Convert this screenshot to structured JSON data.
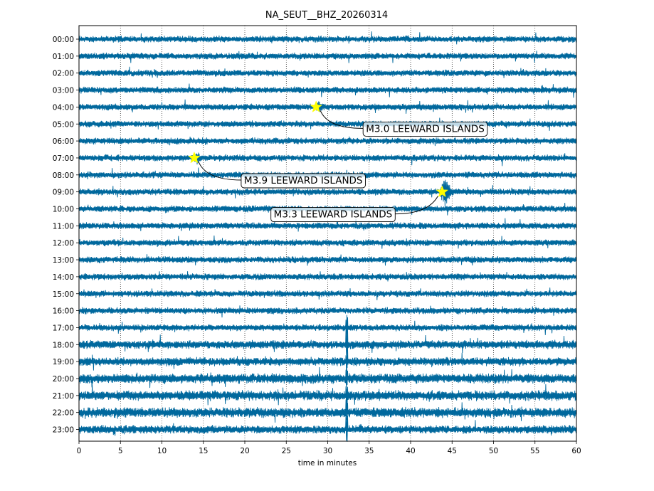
{
  "chart_data": {
    "type": "line",
    "title": "NA_SEUT__BHZ_20260314",
    "xlabel": "time in minutes",
    "ylabel": "",
    "xlim": [
      0,
      60
    ],
    "x_ticks": [
      0,
      5,
      10,
      15,
      20,
      25,
      30,
      35,
      40,
      45,
      50,
      55,
      60
    ],
    "grid": "vertical dotted at each 5-minute tick",
    "trace_color": "#00689d",
    "rows": [
      "00:00",
      "01:00",
      "02:00",
      "03:00",
      "04:00",
      "05:00",
      "06:00",
      "07:00",
      "08:00",
      "09:00",
      "10:00",
      "11:00",
      "12:00",
      "13:00",
      "14:00",
      "15:00",
      "16:00",
      "17:00",
      "18:00",
      "19:00",
      "20:00",
      "21:00",
      "22:00",
      "23:00"
    ],
    "events": [
      {
        "label": "M3.0 LEEWARD ISLANDS",
        "hour_row": "04:00",
        "minute": 28.6
      },
      {
        "label": "M3.9 LEEWARD ISLANDS",
        "hour_row": "07:00",
        "minute": 13.9
      },
      {
        "label": "M3.3 LEEWARD ISLANDS",
        "hour_row": "09:00",
        "minute": 43.8
      }
    ],
    "marker_color": "#ffff00"
  }
}
